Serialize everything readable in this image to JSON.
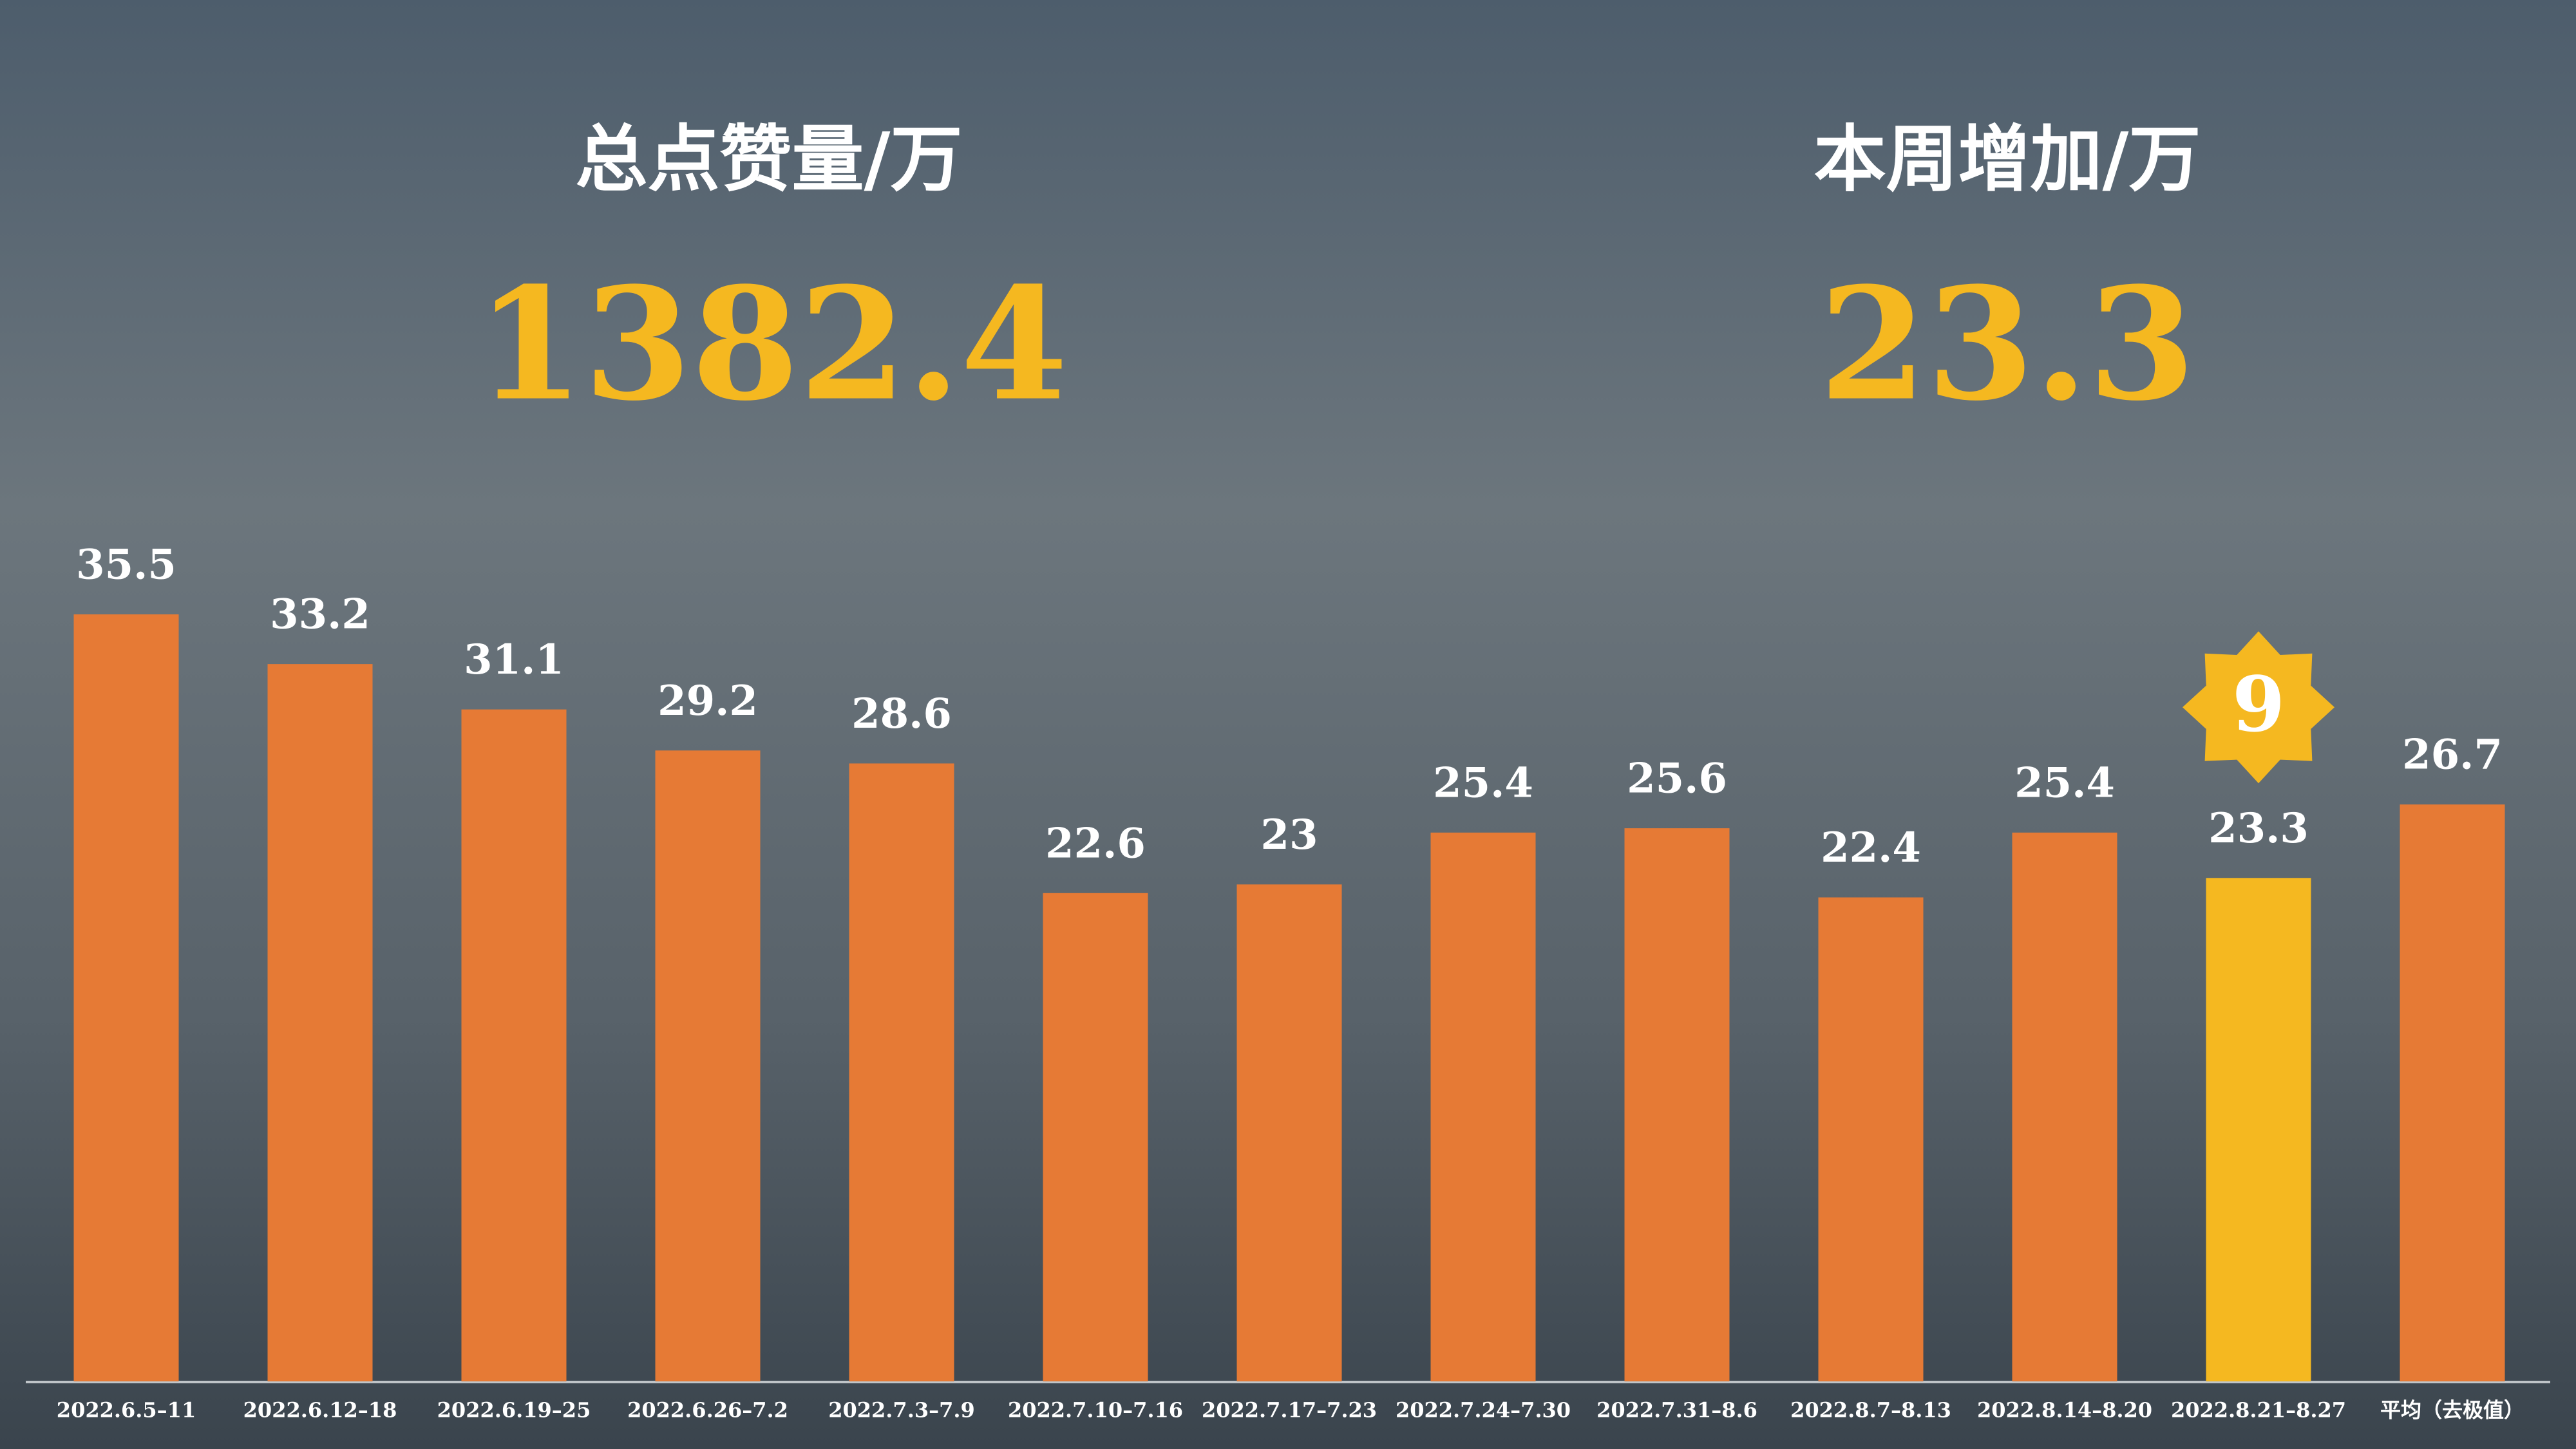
{
  "header": {
    "left": {
      "label": "总点赞量/万",
      "value": "1382.4"
    },
    "right": {
      "label": "本周增加/万",
      "value": "23.3"
    }
  },
  "chart_data": {
    "type": "bar",
    "categories": [
      "2022.6.5–11",
      "2022.6.12–18",
      "2022.6.19–25",
      "2022.6.26–7.2",
      "2022.7.3–7.9",
      "2022.7.10–7.16",
      "2022.7.17–7.23",
      "2022.7.24–7.30",
      "2022.7.31–8.6",
      "2022.8.7–8.13",
      "2022.8.14–8.20",
      "2022.8.21–8.27",
      "平均（去极值）"
    ],
    "values": [
      35.5,
      33.2,
      31.1,
      29.2,
      28.6,
      22.6,
      23,
      25.4,
      25.6,
      22.4,
      25.4,
      23.3,
      26.7
    ],
    "colors": [
      "#e67a35",
      "#e67a35",
      "#e67a35",
      "#e67a35",
      "#e67a35",
      "#e67a35",
      "#e67a35",
      "#e67a35",
      "#e67a35",
      "#e67a35",
      "#e67a35",
      "#f5b820",
      "#e67a35"
    ],
    "ylim": [
      0,
      40
    ],
    "badge": {
      "value": 9,
      "category": "2022.8.21–8.27",
      "color": "#f5b820"
    }
  }
}
